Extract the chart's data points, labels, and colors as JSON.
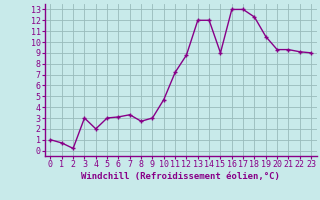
{
  "x": [
    0,
    1,
    2,
    3,
    4,
    5,
    6,
    7,
    8,
    9,
    10,
    11,
    12,
    13,
    14,
    15,
    16,
    17,
    18,
    19,
    20,
    21,
    22,
    23
  ],
  "y": [
    1.0,
    0.7,
    0.2,
    3.0,
    2.0,
    3.0,
    3.1,
    3.3,
    2.7,
    3.0,
    4.7,
    7.2,
    8.8,
    12.0,
    12.0,
    9.0,
    13.0,
    13.0,
    12.3,
    10.5,
    9.3,
    9.3,
    9.1,
    9.0
  ],
  "line_color": "#880088",
  "marker": "+",
  "marker_color": "#880088",
  "bg_color": "#c8eaea",
  "grid_color": "#99bbbb",
  "xlabel": "Windchill (Refroidissement éolien,°C)",
  "xlim": [
    -0.5,
    23.5
  ],
  "ylim": [
    -0.5,
    13.5
  ],
  "yticks": [
    0,
    1,
    2,
    3,
    4,
    5,
    6,
    7,
    8,
    9,
    10,
    11,
    12,
    13
  ],
  "xticks": [
    0,
    1,
    2,
    3,
    4,
    5,
    6,
    7,
    8,
    9,
    10,
    11,
    12,
    13,
    14,
    15,
    16,
    17,
    18,
    19,
    20,
    21,
    22,
    23
  ],
  "tick_label_color": "#880088",
  "xlabel_color": "#880088",
  "xlabel_fontsize": 6.5,
  "tick_fontsize": 6.0,
  "line_width": 1.0,
  "marker_size": 3.5,
  "spine_color": "#880088",
  "spine_bottom_color": "#880088"
}
